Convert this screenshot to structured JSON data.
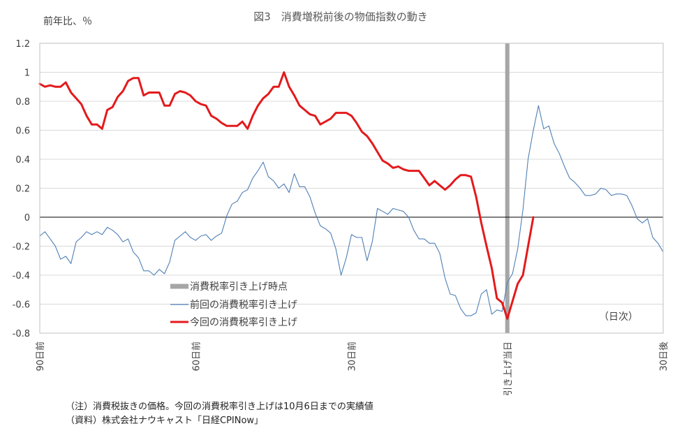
{
  "chart_data": {
    "type": "line",
    "title": "図3　消費増税前後の物価指数の動き",
    "ylabel": "前年比、％",
    "xlabel": "",
    "unit_label": "（日次）",
    "ylim": [
      -0.8,
      1.2
    ],
    "yticks": [
      1.2,
      1,
      0.8,
      0.6,
      0.4,
      0.2,
      0,
      -0.2,
      -0.4,
      -0.6,
      -0.8
    ],
    "ytick_labels": [
      "1.2",
      "1",
      "0.8",
      "0.6",
      "0.4",
      "0.2",
      "0",
      "-0.2",
      "-0.4",
      "-0.6",
      "-0.8"
    ],
    "xlim": [
      -90,
      30
    ],
    "xticks": [
      {
        "x": -90,
        "label": "90日前"
      },
      {
        "x": -60,
        "label": "60日前"
      },
      {
        "x": -30,
        "label": "30日前"
      },
      {
        "x": 0,
        "label": "引き上げ当日"
      },
      {
        "x": 30,
        "label": "30日後"
      }
    ],
    "grid": true,
    "legend_position": "bottom-left",
    "marker": {
      "name": "消費税率引き上げ時点",
      "x": 0,
      "color": "#a6a6a6"
    },
    "series": [
      {
        "name": "前回の消費税率引き上げ",
        "color": "#4f7fb4",
        "x": [
          -90,
          -89,
          -88,
          -87,
          -86,
          -85,
          -84,
          -83,
          -82,
          -81,
          -80,
          -79,
          -78,
          -77,
          -76,
          -75,
          -74,
          -73,
          -72,
          -71,
          -70,
          -69,
          -68,
          -67,
          -66,
          -65,
          -64,
          -63,
          -62,
          -61,
          -60,
          -59,
          -58,
          -57,
          -56,
          -55,
          -54,
          -53,
          -52,
          -51,
          -50,
          -49,
          -48,
          -47,
          -46,
          -45,
          -44,
          -43,
          -42,
          -41,
          -40,
          -39,
          -38,
          -37,
          -36,
          -35,
          -34,
          -33,
          -32,
          -31,
          -30,
          -29,
          -28,
          -27,
          -26,
          -25,
          -24,
          -23,
          -22,
          -21,
          -20,
          -19,
          -18,
          -17,
          -16,
          -15,
          -14,
          -13,
          -12,
          -11,
          -10,
          -9,
          -8,
          -7,
          -6,
          -5,
          -4,
          -3,
          -2,
          -1,
          0,
          1,
          2,
          3,
          4,
          5,
          6,
          7,
          8,
          9,
          10,
          11,
          12,
          13,
          14,
          15,
          16,
          17,
          18,
          19,
          20,
          21,
          22,
          23,
          24,
          25,
          26,
          27,
          28,
          29,
          30
        ],
        "values": [
          -0.13,
          -0.1,
          -0.15,
          -0.2,
          -0.29,
          -0.27,
          -0.32,
          -0.17,
          -0.14,
          -0.1,
          -0.12,
          -0.1,
          -0.12,
          -0.07,
          -0.09,
          -0.12,
          -0.17,
          -0.15,
          -0.24,
          -0.28,
          -0.37,
          -0.37,
          -0.4,
          -0.36,
          -0.39,
          -0.31,
          -0.16,
          -0.13,
          -0.1,
          -0.14,
          -0.16,
          -0.13,
          -0.12,
          -0.16,
          -0.13,
          -0.11,
          0.01,
          0.09,
          0.11,
          0.17,
          0.19,
          0.27,
          0.32,
          0.38,
          0.28,
          0.25,
          0.2,
          0.23,
          0.17,
          0.3,
          0.21,
          0.21,
          0.14,
          0.03,
          -0.06,
          -0.08,
          -0.11,
          -0.22,
          -0.4,
          -0.28,
          -0.12,
          -0.14,
          -0.14,
          -0.3,
          -0.17,
          0.06,
          0.04,
          0.02,
          0.06,
          0.05,
          0.04,
          0.0,
          -0.09,
          -0.15,
          -0.15,
          -0.18,
          -0.18,
          -0.25,
          -0.42,
          -0.53,
          -0.54,
          -0.63,
          -0.68,
          -0.68,
          -0.66,
          -0.53,
          -0.5,
          -0.67,
          -0.64,
          -0.65,
          -0.45,
          -0.39,
          -0.22,
          0.05,
          0.4,
          0.6,
          0.77,
          0.61,
          0.63,
          0.51,
          0.44,
          0.35,
          0.27,
          0.24,
          0.2,
          0.15,
          0.15,
          0.16,
          0.2,
          0.19,
          0.15,
          0.16,
          0.16,
          0.15,
          0.08,
          -0.01,
          -0.04,
          -0.01,
          -0.14,
          -0.18,
          -0.24
        ]
      },
      {
        "name": "今回の消費税率引き上げ",
        "color": "#e31a1c",
        "x": [
          -90,
          -89,
          -88,
          -87,
          -86,
          -85,
          -84,
          -83,
          -82,
          -81,
          -80,
          -79,
          -78,
          -77,
          -76,
          -75,
          -74,
          -73,
          -72,
          -71,
          -70,
          -69,
          -68,
          -67,
          -66,
          -65,
          -64,
          -63,
          -62,
          -61,
          -60,
          -59,
          -58,
          -57,
          -56,
          -55,
          -54,
          -53,
          -52,
          -51,
          -50,
          -49,
          -48,
          -47,
          -46,
          -45,
          -44,
          -43,
          -42,
          -41,
          -40,
          -39,
          -38,
          -37,
          -36,
          -35,
          -34,
          -33,
          -32,
          -31,
          -30,
          -29,
          -28,
          -27,
          -26,
          -25,
          -24,
          -23,
          -22,
          -21,
          -20,
          -19,
          -18,
          -17,
          -16,
          -15,
          -14,
          -13,
          -12,
          -11,
          -10,
          -9,
          -8,
          -7,
          -6,
          -5,
          -4,
          -3,
          -2,
          -1,
          0,
          1,
          2,
          3,
          4,
          5
        ],
        "values": [
          0.92,
          0.9,
          0.91,
          0.9,
          0.9,
          0.93,
          0.86,
          0.82,
          0.78,
          0.7,
          0.64,
          0.64,
          0.61,
          0.74,
          0.76,
          0.83,
          0.87,
          0.94,
          0.96,
          0.96,
          0.84,
          0.86,
          0.86,
          0.86,
          0.77,
          0.77,
          0.85,
          0.87,
          0.86,
          0.84,
          0.8,
          0.78,
          0.77,
          0.7,
          0.68,
          0.65,
          0.63,
          0.63,
          0.63,
          0.66,
          0.61,
          0.7,
          0.77,
          0.82,
          0.85,
          0.9,
          0.9,
          1.0,
          0.9,
          0.84,
          0.77,
          0.74,
          0.71,
          0.7,
          0.64,
          0.66,
          0.68,
          0.72,
          0.72,
          0.72,
          0.7,
          0.65,
          0.59,
          0.56,
          0.51,
          0.45,
          0.39,
          0.37,
          0.34,
          0.35,
          0.33,
          0.32,
          0.32,
          0.32,
          0.27,
          0.22,
          0.25,
          0.22,
          0.19,
          0.22,
          0.26,
          0.29,
          0.29,
          0.28,
          0.14,
          -0.04,
          -0.2,
          -0.35,
          -0.56,
          -0.59,
          -0.7,
          -0.58,
          -0.46,
          -0.4,
          -0.2,
          0.0
        ]
      }
    ]
  },
  "notes": {
    "note1": "（注）消費税抜きの価格。今回の消費税率引き上げは10月6日までの実績値",
    "note2": "（資料）株式会社ナウキャスト「日経CPINow」"
  }
}
